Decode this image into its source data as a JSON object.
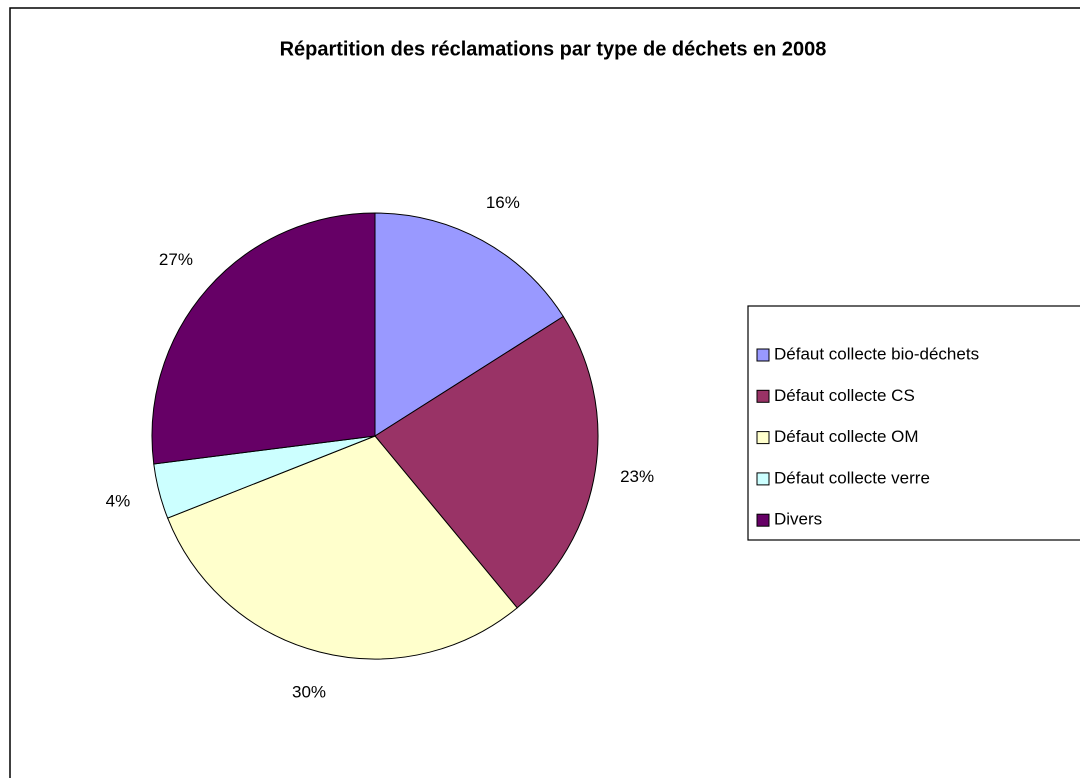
{
  "chart_data": {
    "type": "pie",
    "title": "Répartition des réclamations par type de déchets en 2008",
    "categories": [
      "Défaut collecte bio-déchets",
      "Défaut collecte CS",
      "Défaut collecte OM",
      "Défaut collecte verre",
      "Divers"
    ],
    "values": [
      16,
      23,
      30,
      4,
      27
    ],
    "value_labels": [
      "16%",
      "23%",
      "30%",
      "4%",
      "27%"
    ],
    "colors": [
      "#9999ff",
      "#993366",
      "#ffffcc",
      "#ccffff",
      "#660066"
    ],
    "legend": "right"
  }
}
